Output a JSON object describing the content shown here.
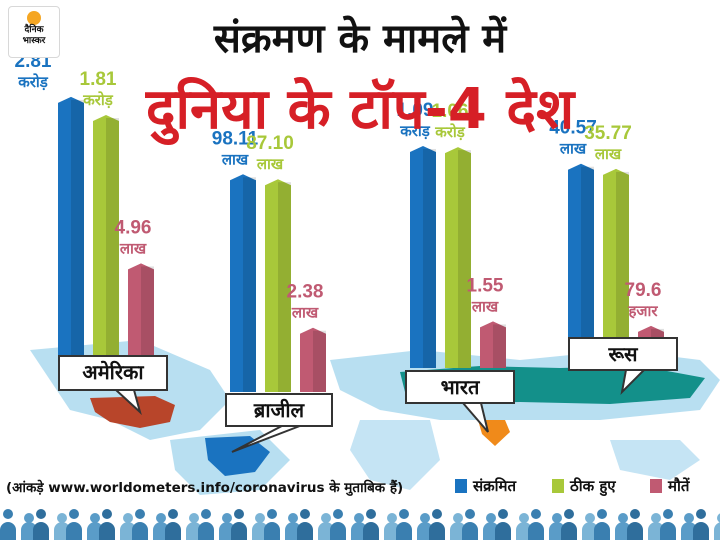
{
  "brand": {
    "line1": "दैनिक",
    "line2": "भास्कर"
  },
  "title_line1": "संक्रमण के मामले में",
  "title_line2": "दुनिया के टॉप-4 देश",
  "source_note": "(आंकड़े www.worldometers.info/coronavirus के मुताबिक हैं)",
  "colors": {
    "infected": "#1a73c0",
    "recovered": "#a8c83a",
    "deaths": "#c05a72",
    "map": "#7ec4e6"
  },
  "chart_data": {
    "type": "bar",
    "categories": [
      "अमेरिका",
      "ब्राजील",
      "भारत",
      "रूस"
    ],
    "series": [
      {
        "name": "संक्रमित",
        "values": [
          28100000,
          9811000,
          10900000,
          4057000
        ],
        "labels": [
          [
            "2.81",
            "करोड़"
          ],
          [
            "98.11",
            "लाख"
          ],
          [
            "1.09",
            "करोड़"
          ],
          [
            "40.57",
            "लाख"
          ]
        ]
      },
      {
        "name": "ठीक हुए",
        "values": [
          18100000,
          8710000,
          10600000,
          3577000
        ],
        "labels": [
          [
            "1.81",
            "करोड़"
          ],
          [
            "87.10",
            "लाख"
          ],
          [
            "1.06",
            "करोड़"
          ],
          [
            "35.77",
            "लाख"
          ]
        ]
      },
      {
        "name": "मौतें",
        "values": [
          496000,
          238000,
          155000,
          79600
        ],
        "labels": [
          [
            "4.96",
            "लाख"
          ],
          [
            "2.38",
            "लाख"
          ],
          [
            "1.55",
            "लाख"
          ],
          [
            "79.6",
            "हजार"
          ]
        ]
      }
    ],
    "legend_position": "bottom-right"
  }
}
